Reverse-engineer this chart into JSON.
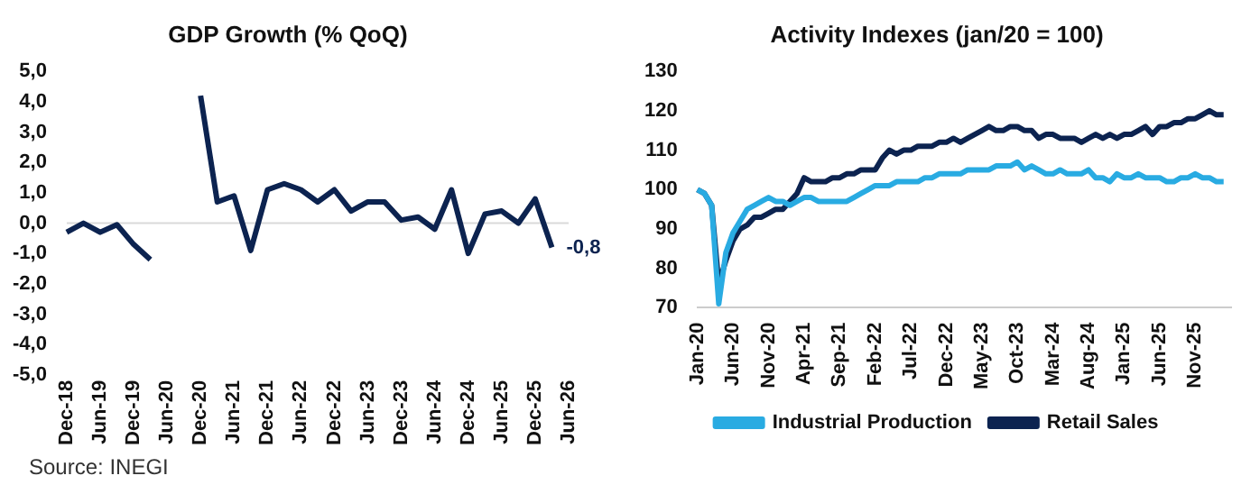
{
  "chart_data": [
    {
      "type": "line",
      "title": "GDP Growth (% QoQ)",
      "categories": [
        "Dec-18",
        null,
        "Jun-19",
        null,
        "Dec-19",
        null,
        "Jun-20",
        null,
        "Dec-20",
        null,
        "Jun-21",
        null,
        "Dec-21",
        null,
        "Jun-22",
        null,
        "Dec-22",
        null,
        "Jun-23",
        null,
        "Dec-23",
        null,
        "Jun-24",
        null,
        "Dec-24",
        null,
        "Jun-25",
        null,
        "Dec-25",
        null,
        "Jun-26"
      ],
      "series": [
        {
          "color": "#0c2350",
          "values": [
            -0.3,
            0.0,
            -0.3,
            -0.05,
            -0.7,
            -1.2,
            null,
            null,
            4.2,
            0.7,
            0.9,
            -0.9,
            1.1,
            1.3,
            1.1,
            0.7,
            1.1,
            0.4,
            0.7,
            0.7,
            0.1,
            0.2,
            -0.2,
            1.1,
            -1.0,
            0.3,
            0.4,
            0.0,
            0.8,
            -0.8,
            null
          ]
        }
      ],
      "ylim": [
        -5,
        5
      ],
      "yticks": [
        {
          "value": -5,
          "label": "-5,0"
        },
        {
          "value": -4,
          "label": "-4,0"
        },
        {
          "value": -3,
          "label": "-3,0"
        },
        {
          "value": -2,
          "label": "-2,0"
        },
        {
          "value": -1,
          "label": "-1,0"
        },
        {
          "value": 0,
          "label": "0,0"
        },
        {
          "value": 1,
          "label": "1,0"
        },
        {
          "value": 2,
          "label": "2,0"
        },
        {
          "value": 3,
          "label": "3,0"
        },
        {
          "value": 4,
          "label": "4,0"
        },
        {
          "value": 5,
          "label": "5,0"
        }
      ],
      "ref_lines": [
        {
          "axis": "y",
          "value": 0,
          "color": "#d9d9d9"
        }
      ],
      "annotations": [
        "-0,8",
        "Source: INEGI"
      ],
      "grid": false,
      "legend": false,
      "marker": "none"
    },
    {
      "type": "line",
      "title": "Activity Indexes (jan/20 = 100)",
      "categories": [
        "Jan-20",
        null,
        null,
        null,
        null,
        "Jun-20",
        null,
        null,
        null,
        null,
        "Nov-20",
        null,
        null,
        null,
        null,
        "Apr-21",
        null,
        null,
        null,
        null,
        "Sep-21",
        null,
        null,
        null,
        null,
        "Feb-22",
        null,
        null,
        null,
        null,
        "Jul-22",
        null,
        null,
        null,
        null,
        "Dec-22",
        null,
        null,
        null,
        null,
        "May-23",
        null,
        null,
        null,
        null,
        "Oct-23",
        null,
        null,
        null,
        null,
        "Mar-24",
        null,
        null,
        null,
        null,
        "Aug-24",
        null,
        null,
        null,
        null,
        "Jan-25",
        null,
        null,
        null,
        null,
        "Jun-25",
        null,
        null,
        null,
        null,
        "Nov-25",
        null,
        null,
        null,
        null,
        null
      ],
      "series": [
        {
          "name": "Industrial Production",
          "color": "#29abe2",
          "values": [
            100,
            99,
            96,
            71,
            84,
            89,
            92,
            95,
            96,
            97,
            98,
            97,
            97,
            96,
            97,
            98,
            98,
            97,
            97,
            97,
            97,
            97,
            98,
            99,
            100,
            101,
            101,
            101,
            102,
            102,
            102,
            102,
            103,
            103,
            104,
            104,
            104,
            104,
            105,
            105,
            105,
            105,
            106,
            106,
            106,
            107,
            105,
            106,
            105,
            104,
            104,
            105,
            104,
            104,
            104,
            105,
            103,
            103,
            102,
            104,
            103,
            103,
            104,
            103,
            103,
            103,
            102,
            102,
            103,
            103,
            104,
            103,
            103,
            102,
            102,
            null
          ]
        },
        {
          "name": "Retail Sales",
          "color": "#0c2350",
          "values": [
            100,
            99,
            96,
            76,
            82,
            87,
            90,
            91,
            93,
            93,
            94,
            95,
            95,
            97,
            99,
            103,
            102,
            102,
            102,
            103,
            103,
            104,
            104,
            105,
            105,
            105,
            108,
            110,
            109,
            110,
            110,
            111,
            111,
            111,
            112,
            112,
            113,
            112,
            113,
            114,
            115,
            116,
            115,
            115,
            116,
            116,
            115,
            115,
            113,
            114,
            114,
            113,
            113,
            113,
            112,
            113,
            114,
            113,
            114,
            113,
            114,
            114,
            115,
            116,
            114,
            116,
            116,
            117,
            117,
            118,
            118,
            119,
            120,
            119,
            119,
            null
          ]
        }
      ],
      "ylim": [
        70,
        130
      ],
      "yticks": [
        70,
        80,
        90,
        100,
        110,
        120,
        130
      ],
      "grid": false,
      "legend": "bottom",
      "marker": "none"
    }
  ]
}
